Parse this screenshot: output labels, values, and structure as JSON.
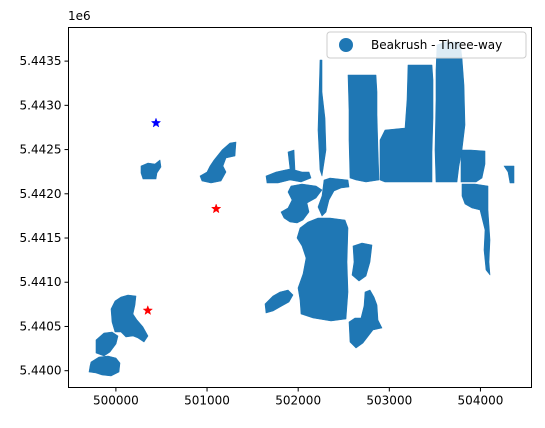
{
  "map": {
    "type": "geo-plot",
    "y_offset_label": "1e6",
    "x_ticks": [
      "500000",
      "501000",
      "502000",
      "503000",
      "504000"
    ],
    "x_tick_values": [
      500000,
      501000,
      502000,
      503000,
      504000
    ],
    "y_ticks": [
      "5.4400",
      "5.4405",
      "5.4410",
      "5.4415",
      "5.4420",
      "5.4425",
      "5.4430",
      "5.4435"
    ],
    "y_tick_values": [
      5440000,
      5440500,
      5441000,
      5441500,
      5442000,
      5442500,
      5443000,
      5443500
    ],
    "xlim": [
      499480,
      504560
    ],
    "ylim": [
      5439810,
      5443880
    ],
    "legend": {
      "label": "Beakrush - Three-way",
      "placement": "top-right"
    },
    "colors": {
      "polygon_fill": "#1f77b4",
      "star_red": "#ff0000",
      "star_blue": "#0000ff",
      "axis": "#000000"
    },
    "markers": [
      {
        "name": "blue-star",
        "x": 500440,
        "y": 5442800,
        "color": "#0000ff"
      },
      {
        "name": "red-star-upper",
        "x": 501100,
        "y": 5441830,
        "color": "#ff0000"
      },
      {
        "name": "red-star-lower",
        "x": 500350,
        "y": 5440680,
        "color": "#ff0000"
      }
    ]
  }
}
